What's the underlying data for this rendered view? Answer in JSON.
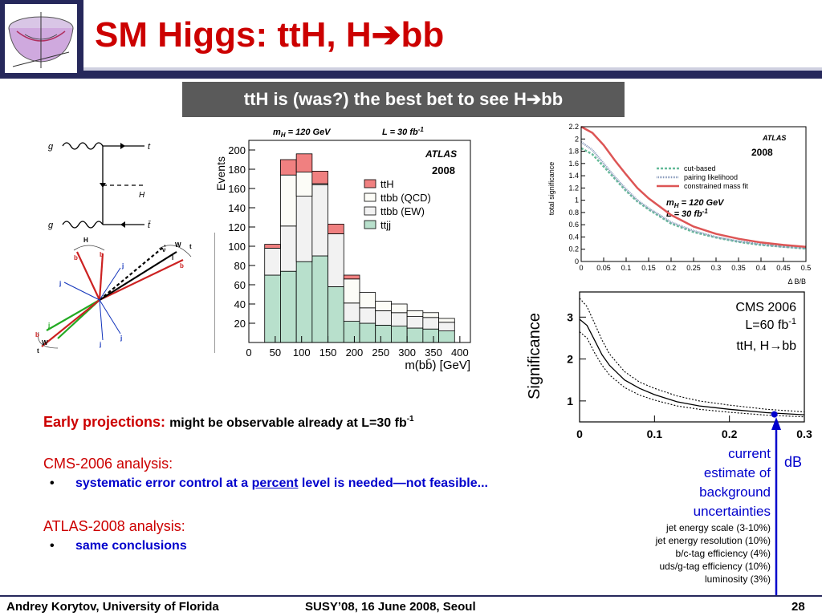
{
  "slide": {
    "title": "SM Higgs: ttH, H",
    "title_suffix": "bb",
    "banner": "ttH is (was?) the best bet to see H",
    "banner_suffix": "bb"
  },
  "colors": {
    "title_red": "#cc0000",
    "navy": "#26285b",
    "bullet_blue": "#0000cc"
  },
  "text": {
    "early_heading": "Early projections:",
    "early_text": "might be observable already at L=30 fb",
    "early_sup": "-1",
    "cms_heading": "CMS-2006 analysis:",
    "cms_bullet_a": "systematic error control at a ",
    "cms_bullet_link": "percent",
    "cms_bullet_b": " level is needed—not feasible...",
    "atlas_heading": "ATLAS-2008 analysis:",
    "atlas_bullet": "same conclusions",
    "bullet_char": "•"
  },
  "annotations": {
    "current_estimate": [
      "current",
      "estimate of",
      "background",
      "uncertainties"
    ],
    "db": "dB",
    "uncertainties": [
      "jet energy scale (3-10%)",
      "jet energy resolution (10%)",
      "b/c-tag efficiency (4%)",
      "uds/g-tag efficiency (10%)",
      "luminosity (3%)"
    ]
  },
  "footer": {
    "author": "Andrey Korytov, University of Florida",
    "conference": "SUSY’08, 16 June 2008, Seoul",
    "page": "28"
  },
  "feynman": {
    "labels": {
      "g_top": "g",
      "g_bottom": "g",
      "t_top": "t",
      "t_bottom": "t̄",
      "H": "H"
    }
  },
  "event_display": {
    "labels": {
      "H": "H",
      "b1": "b",
      "b2": "b",
      "j1": "j",
      "j2": "j",
      "j3": "j",
      "j4": "j",
      "j5": "j",
      "W1": "W",
      "W2": "W",
      "t1": "t",
      "t2": "t",
      "b3": "b",
      "b4": "b",
      "l": "l",
      "nu": "ν"
    }
  },
  "chart_data": [
    {
      "type": "bar",
      "title": "",
      "header_left": "m",
      "header_left_sub": "H",
      "header_left_rest": " = 120 GeV",
      "header_right": "L = 30 fb",
      "header_right_sup": "-1",
      "experiment": "ATLAS",
      "year": "2008",
      "xlabel": "m(bb̄) [GeV]",
      "ylabel": "Events",
      "xlim": [
        0,
        420
      ],
      "ylim": [
        0,
        210
      ],
      "xticks": [
        0,
        50,
        100,
        150,
        200,
        250,
        300,
        350,
        400
      ],
      "yticks": [
        20,
        40,
        60,
        80,
        100,
        120,
        140,
        160,
        180,
        200
      ],
      "bin_edges": [
        30,
        60,
        90,
        120,
        150,
        180,
        210,
        240,
        270,
        300,
        330,
        360,
        390
      ],
      "stacked": true,
      "series": [
        {
          "name": "ttjj",
          "color": "#b8e0cc",
          "values": [
            70,
            74,
            84,
            90,
            58,
            22,
            20,
            18,
            17,
            15,
            14,
            12
          ]
        },
        {
          "name": "ttbb (EW)",
          "color": "#f2f2f2",
          "values": [
            28,
            47,
            68,
            74,
            55,
            19,
            16,
            15,
            14,
            12,
            12,
            9
          ]
        },
        {
          "name": "ttbb (QCD)",
          "color": "#fcfcf7",
          "values": [
            0,
            53,
            25,
            1,
            0,
            25,
            16,
            10,
            9,
            6,
            5,
            4
          ]
        },
        {
          "name": "ttH",
          "color": "#f08080",
          "values": [
            4,
            16,
            19,
            13,
            10,
            4,
            0,
            0,
            0,
            0,
            0,
            0
          ]
        }
      ],
      "legend": [
        "ttH",
        "ttbb (QCD)",
        "ttbb (EW)",
        "ttjj"
      ],
      "legend_position": "right"
    },
    {
      "type": "line",
      "experiment": "ATLAS",
      "year": "2008",
      "xlabel": "Δ B/B",
      "ylabel": "total significance",
      "xlim": [
        0,
        0.5
      ],
      "ylim": [
        0,
        2.2
      ],
      "xticks": [
        0,
        0.05,
        0.1,
        0.15,
        0.2,
        0.25,
        0.3,
        0.35,
        0.4,
        0.45,
        0.5
      ],
      "yticks": [
        0,
        0.2,
        0.4,
        0.6,
        0.8,
        1,
        1.2,
        1.4,
        1.6,
        1.8,
        2,
        2.2
      ],
      "annotation_a": "m",
      "annotation_a_sub": "H",
      "annotation_a_rest": " = 120 GeV",
      "annotation_b": "L = 30 fb",
      "annotation_b_sup": "-1",
      "x": [
        0,
        0.025,
        0.05,
        0.075,
        0.1,
        0.125,
        0.15,
        0.2,
        0.25,
        0.3,
        0.35,
        0.4,
        0.45,
        0.5
      ],
      "series": [
        {
          "name": "cut-based",
          "color": "#66bb99",
          "values": [
            1.85,
            1.75,
            1.55,
            1.35,
            1.15,
            0.98,
            0.85,
            0.62,
            0.48,
            0.39,
            0.32,
            0.27,
            0.24,
            0.21
          ]
        },
        {
          "name": "pairing likelihood",
          "color": "#8899bb",
          "values": [
            1.95,
            1.82,
            1.6,
            1.38,
            1.18,
            1.0,
            0.87,
            0.64,
            0.5,
            0.4,
            0.33,
            0.28,
            0.24,
            0.22
          ]
        },
        {
          "name": "constrained mass fit",
          "color": "#dd5555",
          "values": [
            2.2,
            2.1,
            1.9,
            1.65,
            1.42,
            1.2,
            1.03,
            0.76,
            0.57,
            0.45,
            0.37,
            0.31,
            0.27,
            0.24
          ]
        }
      ],
      "legend_position": "top-right"
    },
    {
      "type": "line",
      "experiment": "CMS 2006",
      "lumi": "L=60 fb",
      "lumi_sup": "-1",
      "channel": "ttH, H",
      "channel_suffix": "bb",
      "xlabel": "",
      "ylabel": "Significance",
      "xlim": [
        0,
        0.3
      ],
      "ylim": [
        0.5,
        3.6
      ],
      "xticks": [
        0,
        0.1,
        0.2,
        0.3
      ],
      "xtick_labels": [
        "0",
        "0.1",
        "0.2",
        "0.3"
      ],
      "yticks": [
        1,
        2,
        3
      ],
      "x": [
        0,
        0.01,
        0.02,
        0.03,
        0.04,
        0.06,
        0.08,
        0.1,
        0.13,
        0.16,
        0.2,
        0.25,
        0.3
      ],
      "series": [
        {
          "name": "upper",
          "style": "dotted",
          "values": [
            3.45,
            3.25,
            2.85,
            2.45,
            2.12,
            1.7,
            1.45,
            1.3,
            1.12,
            1.0,
            0.9,
            0.8,
            0.74
          ]
        },
        {
          "name": "central",
          "style": "solid",
          "values": [
            2.95,
            2.8,
            2.45,
            2.1,
            1.85,
            1.5,
            1.3,
            1.15,
            0.98,
            0.88,
            0.8,
            0.72,
            0.67
          ]
        },
        {
          "name": "lower",
          "style": "dotted",
          "values": [
            2.65,
            2.5,
            2.15,
            1.85,
            1.62,
            1.32,
            1.14,
            1.02,
            0.88,
            0.8,
            0.73,
            0.66,
            0.62
          ]
        }
      ],
      "marker": {
        "x": 0.26,
        "y": 0.68,
        "color": "#0000cc"
      }
    }
  ]
}
